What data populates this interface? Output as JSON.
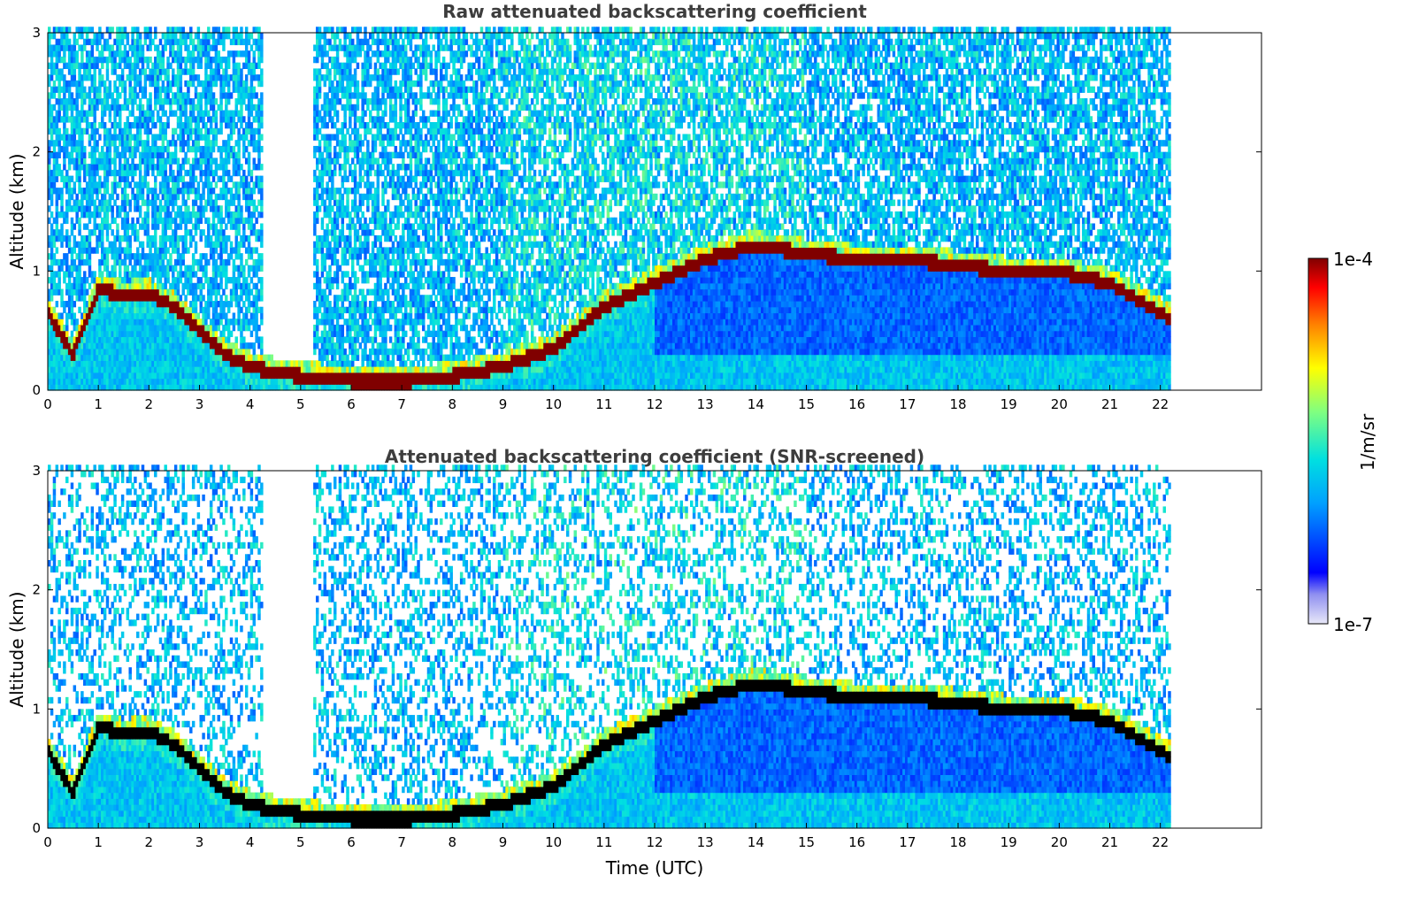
{
  "chart_data": [
    {
      "type": "heatmap",
      "title": "Raw attenuated backscattering coefficient",
      "xlabel": "",
      "ylabel": "Altitude (km)",
      "xlim": [
        0,
        24
      ],
      "ylim": [
        0,
        3
      ],
      "xticks": [
        0,
        1,
        2,
        3,
        4,
        5,
        6,
        7,
        8,
        9,
        10,
        11,
        12,
        13,
        14,
        15,
        16,
        17,
        18,
        19,
        20,
        21,
        22
      ],
      "yticks": [
        0,
        1,
        2,
        3
      ],
      "data_end_time": 22.2,
      "screened": false,
      "colormap": "jet",
      "zscale": "log",
      "zlim": [
        "1e-7",
        "1e-4"
      ],
      "layer_altitude": [
        [
          0.0,
          0.65
        ],
        [
          0.5,
          0.3
        ],
        [
          1.0,
          0.85
        ],
        [
          1.5,
          0.8
        ],
        [
          2.0,
          0.82
        ],
        [
          2.5,
          0.7
        ],
        [
          3.0,
          0.5
        ],
        [
          3.5,
          0.3
        ],
        [
          4.0,
          0.2
        ],
        [
          4.5,
          0.15
        ],
        [
          5.0,
          0.12
        ],
        [
          6.0,
          0.08
        ],
        [
          7.0,
          0.07
        ],
        [
          8.0,
          0.12
        ],
        [
          9.0,
          0.2
        ],
        [
          10.0,
          0.35
        ],
        [
          11.0,
          0.7
        ],
        [
          12.0,
          0.9
        ],
        [
          13.0,
          1.1
        ],
        [
          14.0,
          1.22
        ],
        [
          15.0,
          1.15
        ],
        [
          16.0,
          1.1
        ],
        [
          17.0,
          1.1
        ],
        [
          18.0,
          1.05
        ],
        [
          19.0,
          1.0
        ],
        [
          20.0,
          1.0
        ],
        [
          21.0,
          0.9
        ],
        [
          22.2,
          0.6
        ]
      ]
    },
    {
      "type": "heatmap",
      "title": "Attenuated backscattering coefficient (SNR-screened)",
      "xlabel": "Time (UTC)",
      "ylabel": "Altitude (km)",
      "xlim": [
        0,
        24
      ],
      "ylim": [
        0,
        3
      ],
      "xticks": [
        0,
        1,
        2,
        3,
        4,
        5,
        6,
        7,
        8,
        9,
        10,
        11,
        12,
        13,
        14,
        15,
        16,
        17,
        18,
        19,
        20,
        21,
        22
      ],
      "yticks": [
        0,
        1,
        2,
        3
      ],
      "data_end_time": 22.2,
      "screened": true,
      "colormap": "jet",
      "zscale": "log",
      "zlim": [
        "1e-7",
        "1e-4"
      ]
    }
  ],
  "colorbar": {
    "label": "1/m/sr",
    "max_label": "1e-4",
    "min_label": "1e-7"
  },
  "colors": {
    "layer_peak": "#7f0000",
    "background": "#ffffff"
  }
}
